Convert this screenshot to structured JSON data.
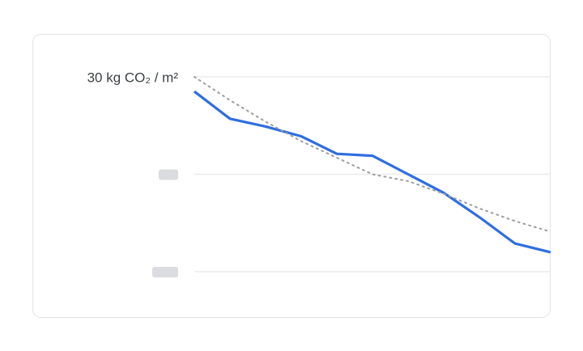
{
  "chart_data": {
    "type": "line",
    "categories": [
      null,
      null,
      null,
      null,
      null,
      null,
      null,
      null,
      null,
      null,
      null
    ],
    "series": [
      {
        "color": "#2f6ee0",
        "style": "solid",
        "values": [
          28.5,
          25.7,
          24.9,
          23.9,
          22.1,
          21.9,
          20.0,
          18.1,
          15.6,
          12.9,
          12.0
        ]
      },
      {
        "color": "#9e9e9e",
        "style": "dotted",
        "values": [
          30,
          27.6,
          25.4,
          23.4,
          21.7,
          20.0,
          19.3,
          18.0,
          16.5,
          15.2,
          14.1
        ]
      }
    ],
    "ylim": [
      10,
      30
    ],
    "yticks": [
      {
        "value": 30,
        "label": "30 kg CO₂ / m²"
      },
      {
        "value": 20,
        "label": null
      },
      {
        "value": 10,
        "label": null
      }
    ],
    "grid": true
  }
}
